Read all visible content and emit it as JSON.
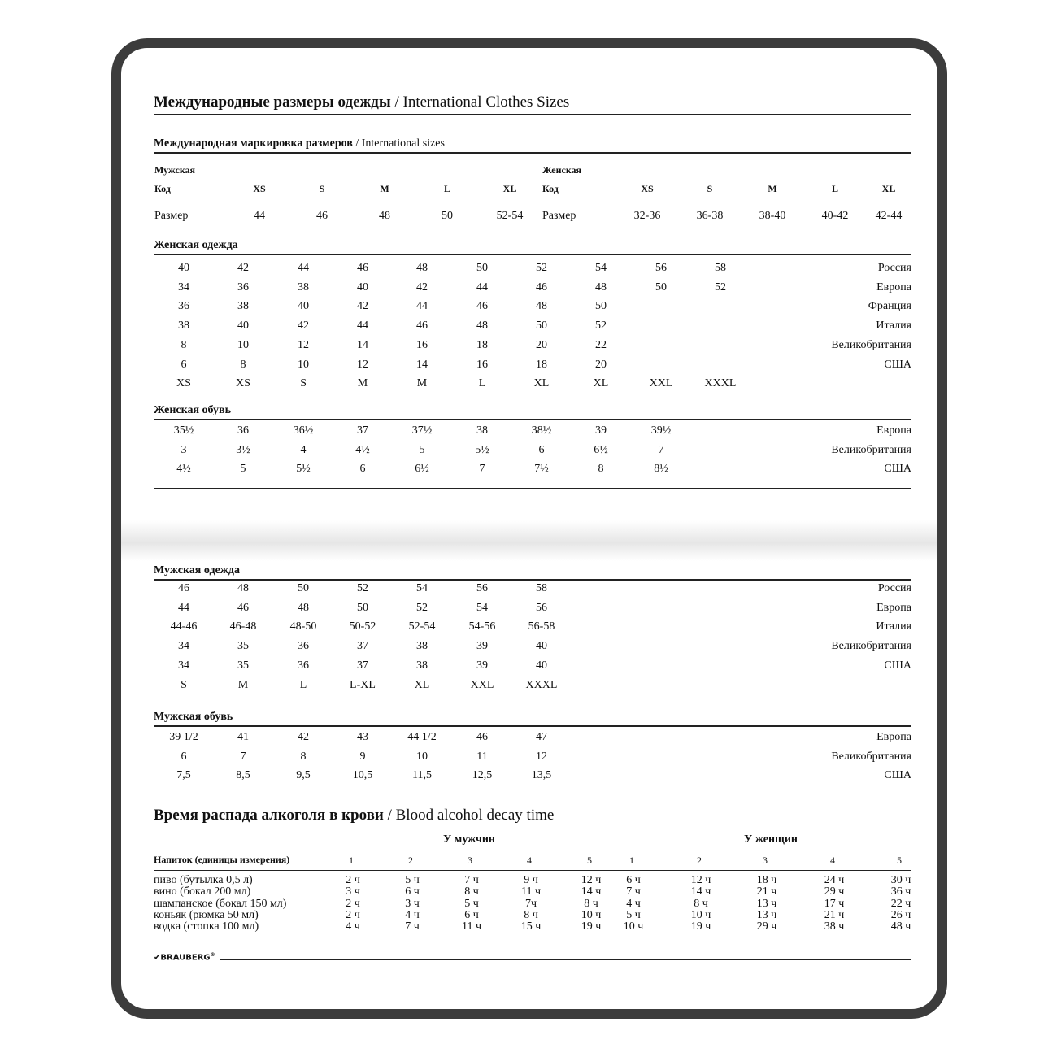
{
  "title": {
    "ru": "Международные размеры одежды",
    "en": " / International Clothes Sizes"
  },
  "intl": {
    "title_ru": "Международная маркировка размеров",
    "title_en": " / International sizes",
    "men": {
      "label": "Мужская",
      "code_label": "Код",
      "size_label": "Размер",
      "codes": [
        "XS",
        "S",
        "M",
        "L",
        "XL"
      ],
      "sizes": [
        "44",
        "46",
        "48",
        "50",
        "52-54"
      ]
    },
    "women": {
      "label": "Женская",
      "code_label": "Код",
      "size_label": "Размер",
      "codes": [
        "XS",
        "S",
        "M",
        "L",
        "XL"
      ],
      "sizes": [
        "32-36",
        "36-38",
        "38-40",
        "40-42",
        "42-44"
      ]
    }
  },
  "women_clothes": {
    "title": "Женская одежда",
    "rows": [
      {
        "country": "Россия",
        "values": [
          "40",
          "42",
          "44",
          "46",
          "48",
          "50",
          "52",
          "54",
          "56",
          "58"
        ]
      },
      {
        "country": "Европа",
        "values": [
          "34",
          "36",
          "38",
          "40",
          "42",
          "44",
          "46",
          "48",
          "50",
          "52"
        ]
      },
      {
        "country": "Франция",
        "values": [
          "36",
          "38",
          "40",
          "42",
          "44",
          "46",
          "48",
          "50"
        ]
      },
      {
        "country": "Италия",
        "values": [
          "38",
          "40",
          "42",
          "44",
          "46",
          "48",
          "50",
          "52"
        ]
      },
      {
        "country": "Великобритания",
        "values": [
          "8",
          "10",
          "12",
          "14",
          "16",
          "18",
          "20",
          "22"
        ]
      },
      {
        "country": "США",
        "values": [
          "6",
          "8",
          "10",
          "12",
          "14",
          "16",
          "18",
          "20"
        ]
      },
      {
        "country": "",
        "values": [
          "XS",
          "XS",
          "S",
          "M",
          "M",
          "L",
          "XL",
          "XL",
          "XXL",
          "XXXL"
        ]
      }
    ]
  },
  "women_shoes": {
    "title": "Женская обувь",
    "rows": [
      {
        "country": "Европа",
        "values": [
          "35½",
          "36",
          "36½",
          "37",
          "37½",
          "38",
          "38½",
          "39",
          "39½"
        ]
      },
      {
        "country": "Великобритания",
        "values": [
          "3",
          "3½",
          "4",
          "4½",
          "5",
          "5½",
          "6",
          "6½",
          "7"
        ]
      },
      {
        "country": "США",
        "values": [
          "4½",
          "5",
          "5½",
          "6",
          "6½",
          "7",
          "7½",
          "8",
          "8½"
        ]
      }
    ]
  },
  "men_clothes": {
    "title": "Мужская одежда",
    "rows": [
      {
        "country": "Россия",
        "values": [
          "46",
          "48",
          "50",
          "52",
          "54",
          "56",
          "58"
        ]
      },
      {
        "country": "Европа",
        "values": [
          "44",
          "46",
          "48",
          "50",
          "52",
          "54",
          "56"
        ]
      },
      {
        "country": "Италия",
        "values": [
          "44-46",
          "46-48",
          "48-50",
          "50-52",
          "52-54",
          "54-56",
          "56-58"
        ]
      },
      {
        "country": "Великобритания",
        "values": [
          "34",
          "35",
          "36",
          "37",
          "38",
          "39",
          "40"
        ]
      },
      {
        "country": "США",
        "values": [
          "34",
          "35",
          "36",
          "37",
          "38",
          "39",
          "40"
        ]
      },
      {
        "country": "",
        "values": [
          "S",
          "M",
          "L",
          "L-XL",
          "XL",
          "XXL",
          "XXXL"
        ]
      }
    ]
  },
  "men_shoes": {
    "title": "Мужская обувь",
    "rows": [
      {
        "country": "Европа",
        "values": [
          "39 1/2",
          "41",
          "42",
          "43",
          "44 1/2",
          "46",
          "47"
        ]
      },
      {
        "country": "Великобритания",
        "values": [
          "6",
          "7",
          "8",
          "9",
          "10",
          "11",
          "12"
        ]
      },
      {
        "country": "США",
        "values": [
          "7,5",
          "8,5",
          "9,5",
          "10,5",
          "11,5",
          "12,5",
          "13,5"
        ]
      }
    ]
  },
  "alcohol": {
    "title_ru": "Время распада алкоголя в крови",
    "title_en": " / Blood alcohol decay time",
    "men_label": "У мужчин",
    "women_label": "У женщин",
    "drink_header": "Напиток (единицы измерения)",
    "units": [
      "1",
      "2",
      "3",
      "4",
      "5"
    ],
    "rows": [
      {
        "drink": "пиво (бутылка 0,5 л)",
        "men": [
          "2 ч",
          "5 ч",
          "7 ч",
          "9 ч",
          "12 ч"
        ],
        "women": [
          "6 ч",
          "12 ч",
          "18 ч",
          "24 ч",
          "30 ч"
        ]
      },
      {
        "drink": "вино (бокал 200 мл)",
        "men": [
          "3 ч",
          "6 ч",
          "8 ч",
          "11 ч",
          "14 ч"
        ],
        "women": [
          "7 ч",
          "14 ч",
          "21 ч",
          "29 ч",
          "36 ч"
        ]
      },
      {
        "drink": "шампанское (бокал 150 мл)",
        "men": [
          "2 ч",
          "3 ч",
          "5 ч",
          "7ч",
          "8 ч"
        ],
        "women": [
          "4 ч",
          "8 ч",
          "13 ч",
          "17 ч",
          "22 ч"
        ]
      },
      {
        "drink": "коньяк (рюмка 50 мл)",
        "men": [
          "2 ч",
          "4 ч",
          "6 ч",
          "8 ч",
          "10 ч"
        ],
        "women": [
          "5 ч",
          "10 ч",
          "13 ч",
          "21 ч",
          "26 ч"
        ]
      },
      {
        "drink": "водка (стопка 100 мл)",
        "men": [
          "4 ч",
          "7 ч",
          "11 ч",
          "15 ч",
          "19 ч"
        ],
        "women": [
          "10 ч",
          "19 ч",
          "29 ч",
          "38 ч",
          "48 ч"
        ]
      }
    ]
  },
  "brand": "BRAUBERG"
}
